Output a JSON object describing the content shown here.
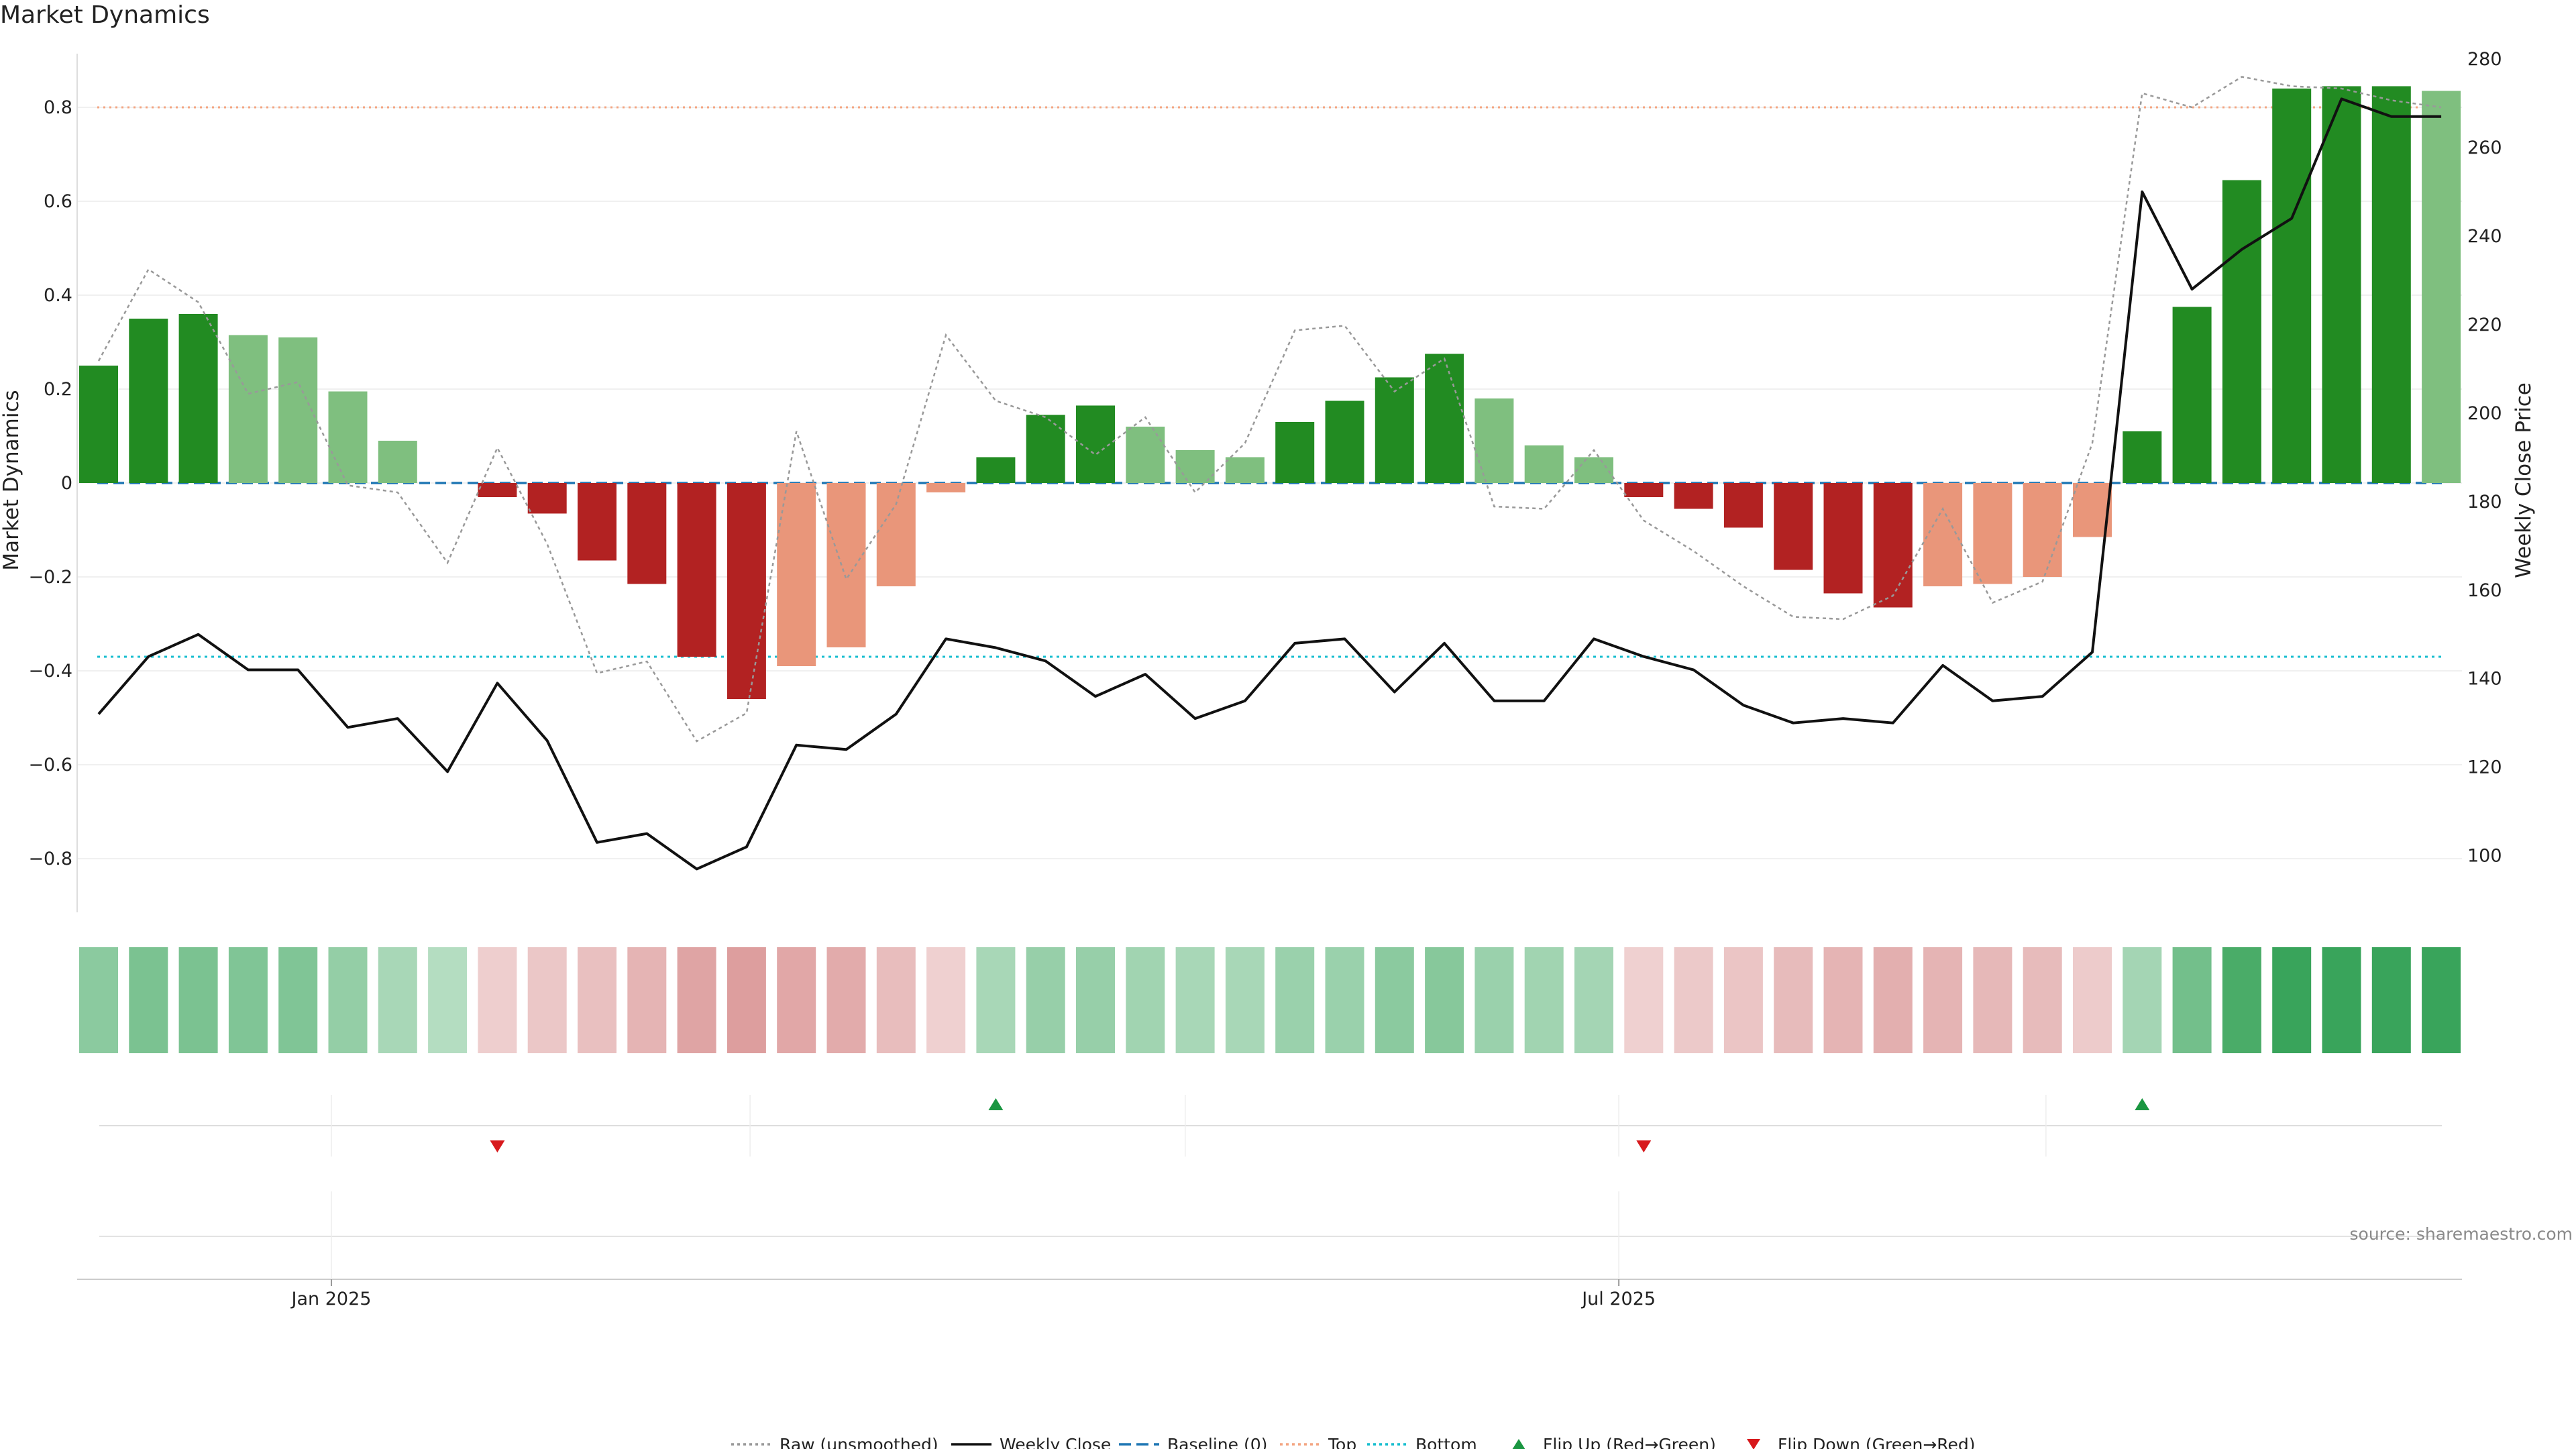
{
  "chart_data": {
    "type": "bar",
    "title": "Market Dynamics",
    "ylabel_left": "Market Dynamics",
    "ylabel_right": "Weekly Close Price",
    "ylim_left": [
      -0.92,
      0.92
    ],
    "ylim_right": [
      86,
      280
    ],
    "yticks_left": [
      0.8,
      0.6,
      0.4,
      0.2,
      0,
      -0.2,
      -0.4,
      -0.6,
      -0.8
    ],
    "yticks_left_labels": [
      "0.8",
      "0.6",
      "0.4",
      "0.2",
      "0",
      "−0.2",
      "−0.4",
      "−0.6",
      "−0.8"
    ],
    "yticks_right": [
      280,
      260,
      240,
      220,
      200,
      180,
      160,
      140,
      120,
      100
    ],
    "yticks_right_labels": [
      "280",
      "260",
      "240",
      "220",
      "200",
      "180",
      "160",
      "140",
      "120",
      "100"
    ],
    "x_tick_labels": [
      {
        "label": "Jan 2025",
        "index": 4.67
      },
      {
        "label": "Jul 2025",
        "index": 30.5
      }
    ],
    "baseline": 0,
    "top_threshold": 0.8,
    "bottom_threshold": -0.37,
    "colors": {
      "strong_green": "#228B22",
      "weak_green": "#7FBF7F",
      "strong_red": "#B22222",
      "weak_red": "#E9967A",
      "raw_line": "#999999",
      "close_line": "#111111",
      "baseline_line": "#1f77b4",
      "top_line": "#F4A582",
      "bottom_line": "#17BECF",
      "flip_up": "#1A9641",
      "flip_down": "#D7191C"
    },
    "bars": [
      0.25,
      0.35,
      0.36,
      0.315,
      0.31,
      0.195,
      0.09,
      0.0,
      -0.03,
      -0.065,
      -0.165,
      -0.215,
      -0.37,
      -0.46,
      -0.39,
      -0.35,
      -0.22,
      -0.02,
      0.055,
      0.145,
      0.165,
      0.12,
      0.07,
      0.055,
      0.13,
      0.175,
      0.225,
      0.275,
      0.18,
      0.08,
      0.055,
      -0.03,
      -0.055,
      -0.095,
      -0.185,
      -0.235,
      -0.265,
      -0.22,
      -0.215,
      -0.2,
      -0.115,
      0.11,
      0.375,
      0.645,
      0.84,
      0.845,
      0.845,
      0.835
    ],
    "bar_strength": [
      "strong",
      "strong",
      "strong",
      "weak",
      "weak",
      "weak",
      "weak",
      "weak",
      "strong",
      "strong",
      "strong",
      "strong",
      "strong",
      "strong",
      "weak",
      "weak",
      "weak",
      "weak",
      "strong",
      "strong",
      "strong",
      "weak",
      "weak",
      "weak",
      "strong",
      "strong",
      "strong",
      "strong",
      "weak",
      "weak",
      "weak",
      "strong",
      "strong",
      "strong",
      "strong",
      "strong",
      "strong",
      "weak",
      "weak",
      "weak",
      "weak",
      "strong",
      "strong",
      "strong",
      "strong",
      "strong",
      "strong",
      "weak"
    ],
    "series": [
      {
        "name": "Raw (unsmoothed)",
        "values": [
          0.26,
          0.455,
          0.385,
          0.19,
          0.215,
          -0.005,
          -0.02,
          -0.17,
          0.075,
          -0.13,
          -0.405,
          -0.38,
          -0.55,
          -0.49,
          0.11,
          -0.205,
          -0.045,
          0.315,
          0.175,
          0.14,
          0.06,
          0.14,
          -0.02,
          0.085,
          0.325,
          0.335,
          0.195,
          0.265,
          -0.05,
          -0.055,
          0.07,
          -0.08,
          -0.145,
          -0.22,
          -0.285,
          -0.29,
          -0.24,
          -0.055,
          -0.255,
          -0.21,
          0.085,
          0.83,
          0.8,
          0.865,
          0.845,
          0.84,
          0.815,
          0.8
        ]
      },
      {
        "name": "Weekly Close",
        "values": [
          132,
          145,
          150,
          142,
          142,
          129,
          131,
          119,
          139,
          126,
          103,
          105,
          97,
          102,
          125,
          124,
          132,
          149,
          147,
          144,
          136,
          141,
          131,
          135,
          148,
          149,
          137,
          148,
          135,
          135,
          149,
          145,
          142,
          134,
          130,
          131,
          130,
          143,
          135,
          136,
          146,
          250,
          228,
          237,
          244,
          271,
          267,
          267
        ]
      }
    ],
    "heat_strip": [
      0.45,
      0.55,
      0.55,
      0.52,
      0.52,
      0.4,
      0.28,
      0.2,
      -0.2,
      -0.25,
      -0.3,
      -0.38,
      -0.5,
      -0.55,
      -0.48,
      -0.45,
      -0.32,
      -0.18,
      0.28,
      0.38,
      0.38,
      0.32,
      0.28,
      0.28,
      0.36,
      0.36,
      0.45,
      0.48,
      0.36,
      0.32,
      0.3,
      -0.18,
      -0.23,
      -0.26,
      -0.33,
      -0.38,
      -0.42,
      -0.38,
      -0.36,
      -0.34,
      -0.22,
      0.3,
      0.6,
      0.85,
      0.95,
      0.95,
      0.95,
      0.95
    ],
    "flips": [
      {
        "type": "down",
        "index": 8
      },
      {
        "type": "up",
        "index": 18
      },
      {
        "type": "down",
        "index": 31
      },
      {
        "type": "up",
        "index": 41
      }
    ],
    "event_grid_indices": [
      4.67,
      13.07,
      21.8,
      30.5,
      39.07
    ],
    "legend": [
      {
        "label": "Raw (unsmoothed)",
        "symbol": "dotted",
        "color": "#999999"
      },
      {
        "label": "Weekly Close",
        "symbol": "solid",
        "color": "#111111"
      },
      {
        "label": "Baseline (0)",
        "symbol": "dashed",
        "color": "#1f77b4"
      },
      {
        "label": "Top",
        "symbol": "dotted",
        "color": "#F4A582"
      },
      {
        "label": "Bottom",
        "symbol": "dotted",
        "color": "#17BECF"
      },
      {
        "label": "Flip Up (Red→Green)",
        "symbol": "triangle-up",
        "color": "#1A9641"
      },
      {
        "label": "Flip Down (Green→Red)",
        "symbol": "triangle-down",
        "color": "#D7191C"
      }
    ],
    "legend_position": "bottom-center",
    "source": "source: sharemaestro.com",
    "grid": true
  }
}
